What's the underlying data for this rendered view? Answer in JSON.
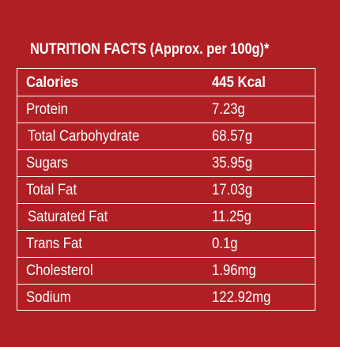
{
  "title": "NUTRITION FACTS (Approx. per 100g)*",
  "header": {
    "name": "Calories",
    "value": "445 Kcal"
  },
  "rows": [
    {
      "name": "Protein",
      "value": "7.23g"
    },
    {
      "name": "Total Carbohydrate",
      "value": "68.57g"
    },
    {
      "name": "Sugars",
      "value": "35.95g"
    },
    {
      "name": "Total Fat",
      "value": "17.03g"
    },
    {
      "name": "Saturated Fat",
      "value": "11.25g"
    },
    {
      "name": "Trans Fat",
      "value": "0.1g"
    },
    {
      "name": "Cholesterol",
      "value": "1.96mg"
    },
    {
      "name": "Sodium",
      "value": "122.92mg"
    }
  ],
  "colors": {
    "background": "#b01f24",
    "text": "#ffffff"
  }
}
